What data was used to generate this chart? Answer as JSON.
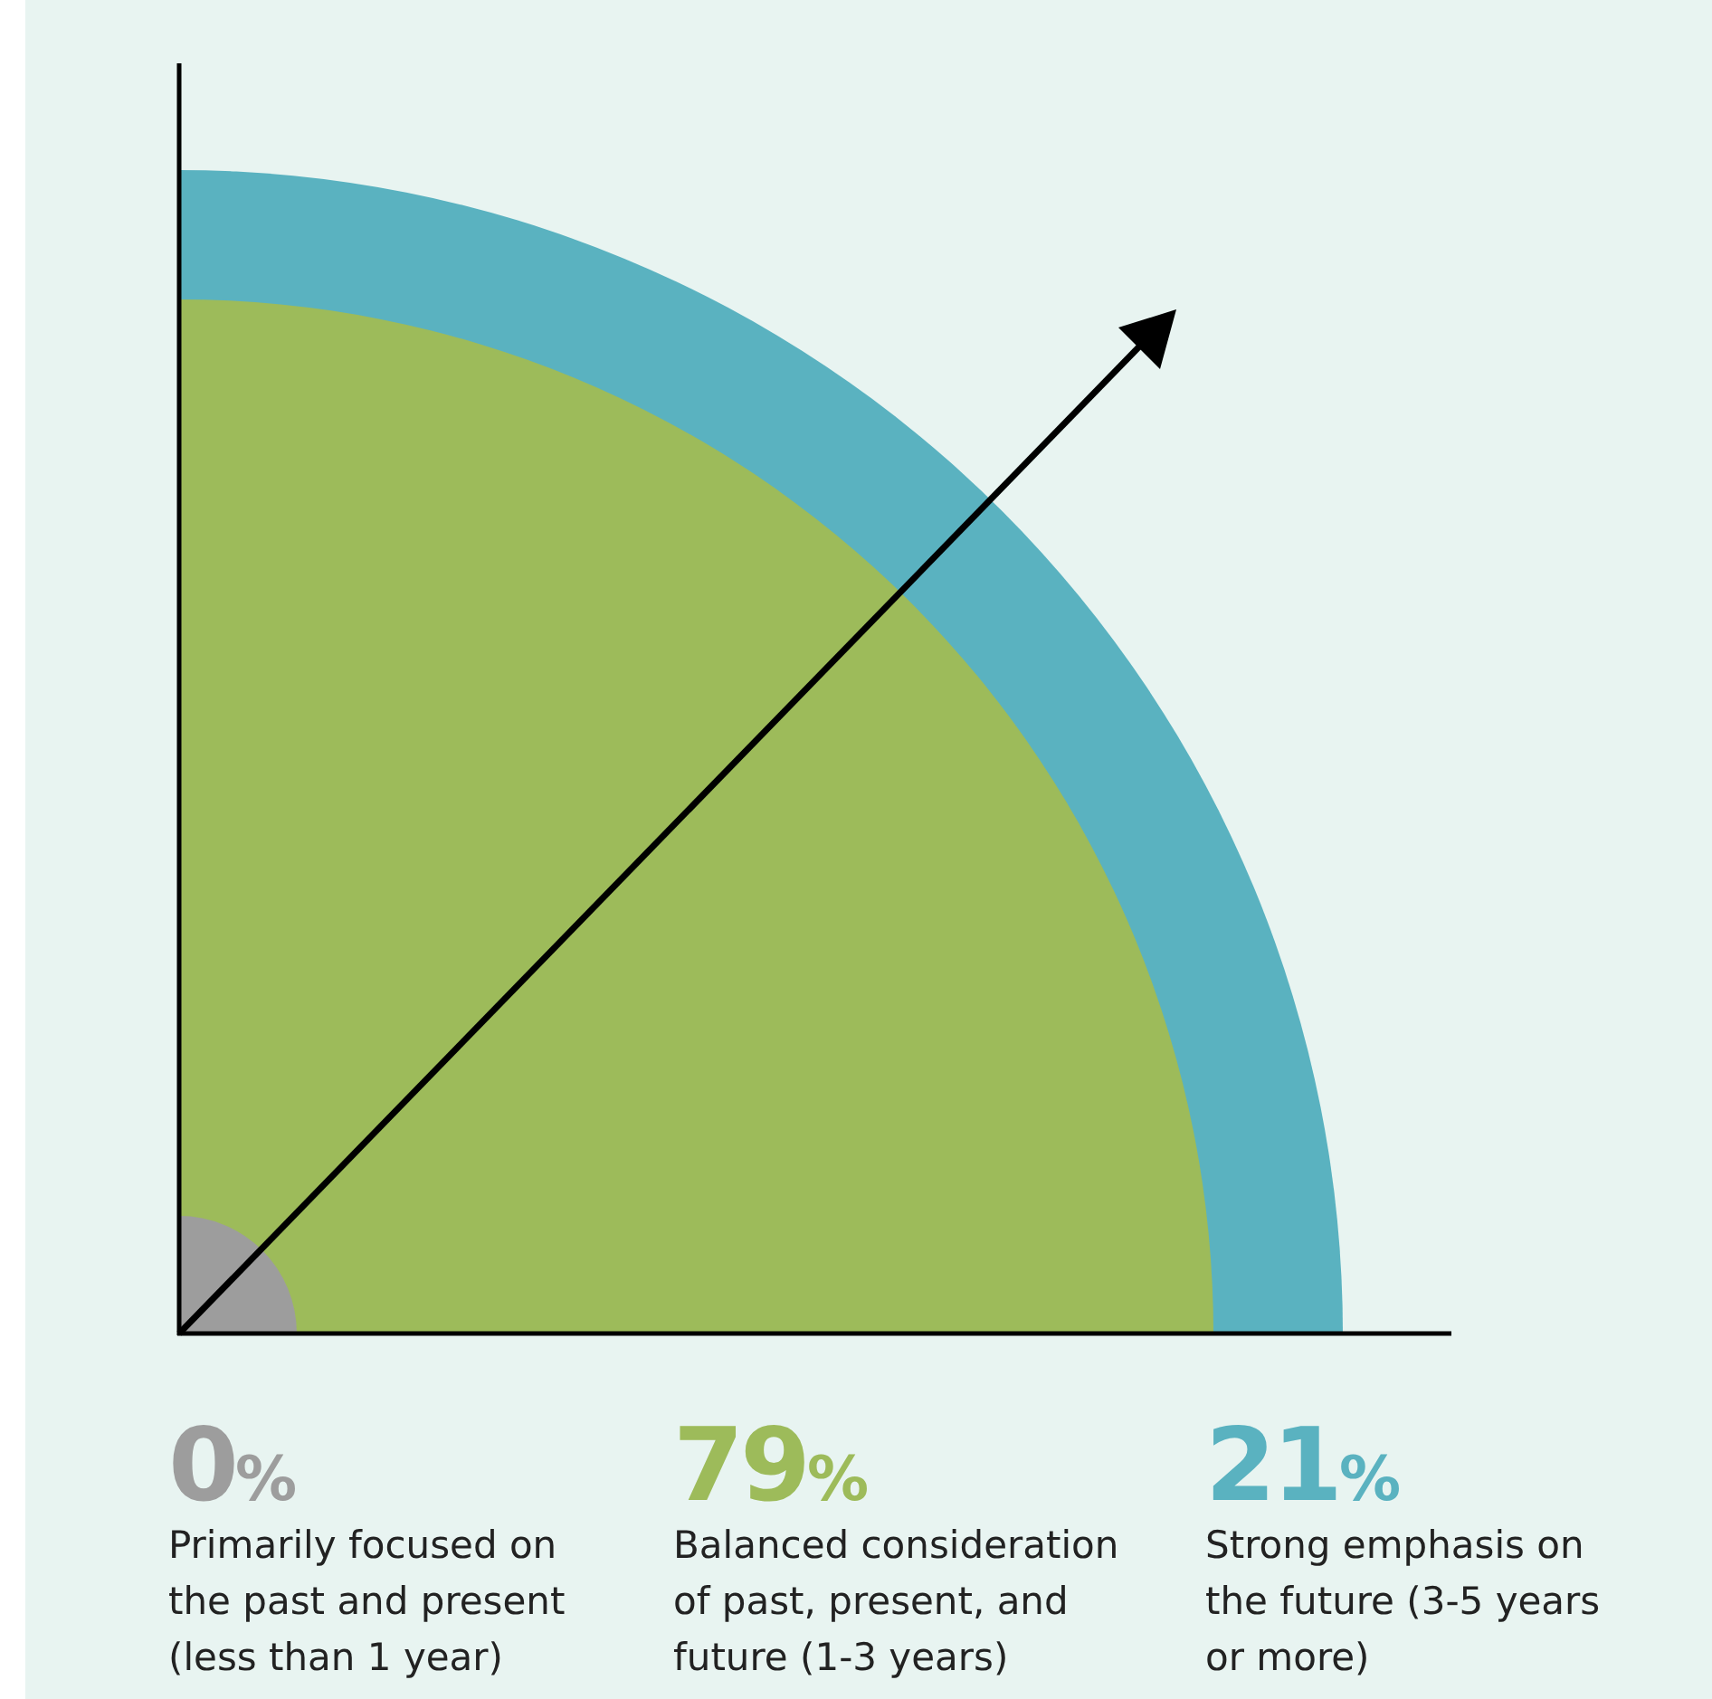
{
  "chart_data": {
    "type": "other",
    "categories": [
      "Primarily focused on the past and present (less than 1 year)",
      "Balanced consideration of past, present, and future (1-3 years)",
      "Strong emphasis on the future (3-5 years or more)"
    ],
    "values": [
      0,
      79,
      21
    ],
    "value_labels": [
      "0%",
      "79%",
      "21%"
    ],
    "colors": [
      "#9d9d9d",
      "#9dbb5a",
      "#5ab2c0"
    ]
  }
}
